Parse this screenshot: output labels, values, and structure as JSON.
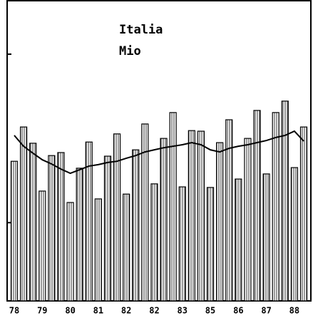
{
  "chart_data": {
    "type": "bar",
    "title": "Italia",
    "subtitle": "Mio",
    "categories": [
      "78",
      null,
      null,
      "79",
      null,
      null,
      "80",
      null,
      null,
      "81",
      null,
      null,
      "82",
      null,
      null,
      "82",
      null,
      null,
      "83",
      null,
      null,
      "85",
      null,
      null,
      "86",
      null,
      null,
      "87",
      null,
      null,
      "88",
      null
    ],
    "values": [
      46.4,
      57.8,
      52.4,
      36.5,
      48.3,
      49.3,
      32.7,
      44.1,
      52.8,
      33.9,
      48.1,
      55.5,
      35.5,
      50.2,
      58.8,
      38.9,
      54.0,
      62.6,
      37.9,
      56.6,
      56.4,
      37.7,
      52.6,
      60.2,
      40.5,
      54.0,
      63.3,
      42.2,
      62.6,
      66.4,
      44.3,
      57.8
    ],
    "line_values": [
      55.0,
      51.4,
      49.1,
      46.9,
      45.5,
      43.8,
      42.4,
      43.6,
      44.8,
      45.3,
      46.0,
      46.4,
      47.4,
      48.3,
      49.5,
      50.2,
      50.9,
      51.4,
      51.9,
      52.6,
      51.9,
      50.2,
      49.5,
      50.7,
      51.4,
      51.9,
      52.6,
      53.3,
      54.3,
      55.0,
      56.4,
      53.1
    ],
    "color": "#000000",
    "ylim": [
      0,
      100
    ],
    "yticks": [
      26,
      82
    ]
  }
}
